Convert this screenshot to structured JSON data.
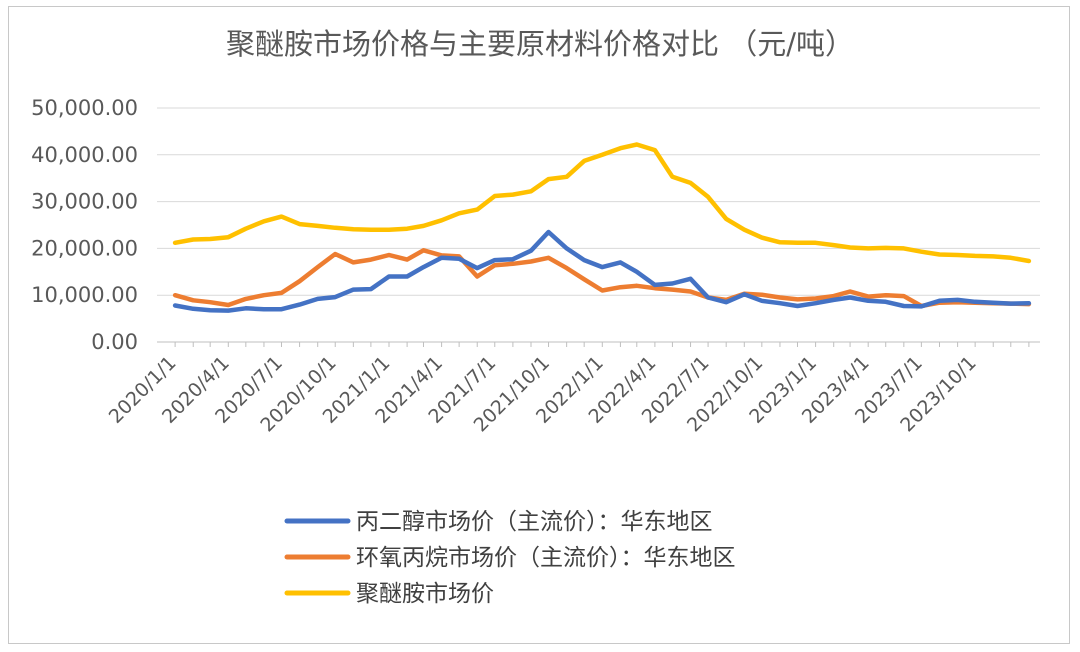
{
  "chart_data": {
    "type": "line",
    "title": "聚醚胺市场价格与主要原材料价格对比 （元/吨）",
    "ylim": [
      0,
      50000
    ],
    "y_ticks": [
      "0.00",
      "10,000.00",
      "20,000.00",
      "30,000.00",
      "40,000.00",
      "50,000.00"
    ],
    "x_tick_labels": [
      "2020/1/1",
      "2020/4/1",
      "2020/7/1",
      "2020/10/1",
      "2021/1/1",
      "2021/4/1",
      "2021/7/1",
      "2021/10/1",
      "2022/1/1",
      "2022/4/1",
      "2022/7/1",
      "2022/10/1",
      "2023/1/1",
      "2023/4/1",
      "2023/7/1",
      "2023/10/1"
    ],
    "x_range": [
      "2019-12-01",
      "2024-01-20"
    ],
    "grid": "horizontal",
    "legend_position": "bottom",
    "series": [
      {
        "name": "丙二醇市场价（主流价）：华东地区",
        "color": "#4472C4",
        "points": [
          [
            "2020-01-01",
            7800
          ],
          [
            "2020-02-01",
            7100
          ],
          [
            "2020-03-01",
            6800
          ],
          [
            "2020-04-01",
            6700
          ],
          [
            "2020-05-01",
            7200
          ],
          [
            "2020-06-01",
            7000
          ],
          [
            "2020-07-01",
            7000
          ],
          [
            "2020-08-01",
            8000
          ],
          [
            "2020-09-01",
            9200
          ],
          [
            "2020-10-01",
            9600
          ],
          [
            "2020-11-01",
            11200
          ],
          [
            "2020-12-01",
            11300
          ],
          [
            "2021-01-01",
            14000
          ],
          [
            "2021-02-01",
            14000
          ],
          [
            "2021-03-01",
            16000
          ],
          [
            "2021-04-01",
            18000
          ],
          [
            "2021-05-01",
            17800
          ],
          [
            "2021-06-01",
            15800
          ],
          [
            "2021-07-01",
            17500
          ],
          [
            "2021-08-01",
            17700
          ],
          [
            "2021-09-01",
            19500
          ],
          [
            "2021-10-01",
            23500
          ],
          [
            "2021-11-01",
            20000
          ],
          [
            "2021-12-01",
            17500
          ],
          [
            "2022-01-01",
            16000
          ],
          [
            "2022-02-01",
            17000
          ],
          [
            "2022-03-01",
            15000
          ],
          [
            "2022-04-01",
            12200
          ],
          [
            "2022-05-01",
            12500
          ],
          [
            "2022-06-01",
            13500
          ],
          [
            "2022-07-01",
            9500
          ],
          [
            "2022-08-01",
            8500
          ],
          [
            "2022-09-01",
            10200
          ],
          [
            "2022-10-01",
            8800
          ],
          [
            "2022-11-01",
            8300
          ],
          [
            "2022-12-01",
            7700
          ],
          [
            "2023-01-01",
            8300
          ],
          [
            "2023-02-01",
            9000
          ],
          [
            "2023-03-01",
            9500
          ],
          [
            "2023-04-01",
            8800
          ],
          [
            "2023-05-01",
            8600
          ],
          [
            "2023-06-01",
            7700
          ],
          [
            "2023-07-01",
            7600
          ],
          [
            "2023-08-01",
            8800
          ],
          [
            "2023-09-01",
            9000
          ],
          [
            "2023-10-01",
            8600
          ],
          [
            "2023-11-01",
            8400
          ],
          [
            "2023-12-01",
            8200
          ],
          [
            "2024-01-01",
            8300
          ]
        ]
      },
      {
        "name": "环氧丙烷市场价（主流价）：华东地区",
        "color": "#ED7D31",
        "points": [
          [
            "2020-01-01",
            10000
          ],
          [
            "2020-02-01",
            8900
          ],
          [
            "2020-03-01",
            8500
          ],
          [
            "2020-04-01",
            7900
          ],
          [
            "2020-05-01",
            9200
          ],
          [
            "2020-06-01",
            10000
          ],
          [
            "2020-07-01",
            10500
          ],
          [
            "2020-08-01",
            13000
          ],
          [
            "2020-09-01",
            16000
          ],
          [
            "2020-10-01",
            18800
          ],
          [
            "2020-11-01",
            17000
          ],
          [
            "2020-12-01",
            17600
          ],
          [
            "2021-01-01",
            18600
          ],
          [
            "2021-02-01",
            17600
          ],
          [
            "2021-03-01",
            19600
          ],
          [
            "2021-04-01",
            18500
          ],
          [
            "2021-05-01",
            18300
          ],
          [
            "2021-06-01",
            14000
          ],
          [
            "2021-07-01",
            16400
          ],
          [
            "2021-08-01",
            16700
          ],
          [
            "2021-09-01",
            17200
          ],
          [
            "2021-10-01",
            18000
          ],
          [
            "2021-11-01",
            15800
          ],
          [
            "2021-12-01",
            13400
          ],
          [
            "2022-01-01",
            11000
          ],
          [
            "2022-02-01",
            11700
          ],
          [
            "2022-03-01",
            12000
          ],
          [
            "2022-04-01",
            11500
          ],
          [
            "2022-05-01",
            11200
          ],
          [
            "2022-06-01",
            10800
          ],
          [
            "2022-07-01",
            9500
          ],
          [
            "2022-08-01",
            9000
          ],
          [
            "2022-09-01",
            10300
          ],
          [
            "2022-10-01",
            10100
          ],
          [
            "2022-11-01",
            9500
          ],
          [
            "2022-12-01",
            9100
          ],
          [
            "2023-01-01",
            9300
          ],
          [
            "2023-02-01",
            9800
          ],
          [
            "2023-03-01",
            10800
          ],
          [
            "2023-04-01",
            9700
          ],
          [
            "2023-05-01",
            10000
          ],
          [
            "2023-06-01",
            9800
          ],
          [
            "2023-07-01",
            7700
          ],
          [
            "2023-08-01",
            8400
          ],
          [
            "2023-09-01",
            8500
          ],
          [
            "2023-10-01",
            8400
          ],
          [
            "2023-11-01",
            8300
          ],
          [
            "2023-12-01",
            8200
          ],
          [
            "2024-01-01",
            8100
          ]
        ]
      },
      {
        "name": "聚醚胺市场价",
        "color": "#FFC000",
        "points": [
          [
            "2020-01-01",
            21200
          ],
          [
            "2020-02-01",
            21900
          ],
          [
            "2020-03-01",
            22000
          ],
          [
            "2020-04-01",
            22400
          ],
          [
            "2020-05-01",
            24200
          ],
          [
            "2020-06-01",
            25800
          ],
          [
            "2020-07-01",
            26800
          ],
          [
            "2020-08-01",
            25200
          ],
          [
            "2020-09-01",
            24800
          ],
          [
            "2020-10-01",
            24400
          ],
          [
            "2020-11-01",
            24100
          ],
          [
            "2020-12-01",
            24000
          ],
          [
            "2021-01-01",
            24000
          ],
          [
            "2021-02-01",
            24200
          ],
          [
            "2021-03-01",
            24800
          ],
          [
            "2021-04-01",
            26000
          ],
          [
            "2021-05-01",
            27500
          ],
          [
            "2021-06-01",
            28300
          ],
          [
            "2021-07-01",
            31200
          ],
          [
            "2021-08-01",
            31500
          ],
          [
            "2021-09-01",
            32200
          ],
          [
            "2021-10-01",
            34800
          ],
          [
            "2021-11-01",
            35300
          ],
          [
            "2021-12-01",
            38700
          ],
          [
            "2022-01-01",
            40000
          ],
          [
            "2022-02-01",
            41400
          ],
          [
            "2022-03-01",
            42200
          ],
          [
            "2022-04-01",
            41000
          ],
          [
            "2022-05-01",
            35300
          ],
          [
            "2022-06-01",
            34000
          ],
          [
            "2022-07-01",
            31000
          ],
          [
            "2022-08-01",
            26300
          ],
          [
            "2022-09-01",
            24000
          ],
          [
            "2022-10-01",
            22300
          ],
          [
            "2022-11-01",
            21300
          ],
          [
            "2022-12-01",
            21200
          ],
          [
            "2023-01-01",
            21200
          ],
          [
            "2023-02-01",
            20700
          ],
          [
            "2023-03-01",
            20200
          ],
          [
            "2023-04-01",
            20000
          ],
          [
            "2023-05-01",
            20100
          ],
          [
            "2023-06-01",
            20000
          ],
          [
            "2023-07-01",
            19300
          ],
          [
            "2023-08-01",
            18700
          ],
          [
            "2023-09-01",
            18600
          ],
          [
            "2023-10-01",
            18400
          ],
          [
            "2023-11-01",
            18300
          ],
          [
            "2023-12-01",
            18000
          ],
          [
            "2024-01-01",
            17300
          ]
        ]
      }
    ]
  }
}
